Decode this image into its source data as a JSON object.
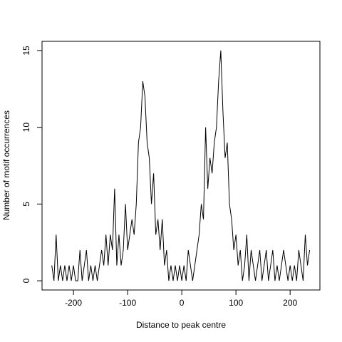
{
  "chart_data": {
    "type": "line",
    "xlabel": "Distance to peak centre",
    "ylabel": "Number of motif occurrences",
    "x": [
      -240,
      -236,
      -232,
      -228,
      -224,
      -220,
      -216,
      -212,
      -208,
      -204,
      -200,
      -196,
      -192,
      -188,
      -184,
      -180,
      -176,
      -172,
      -168,
      -164,
      -160,
      -156,
      -152,
      -148,
      -144,
      -140,
      -136,
      -132,
      -128,
      -124,
      -120,
      -116,
      -112,
      -108,
      -104,
      -100,
      -96,
      -92,
      -88,
      -84,
      -80,
      -76,
      -72,
      -68,
      -64,
      -60,
      -56,
      -52,
      -48,
      -44,
      -40,
      -36,
      -32,
      -28,
      -24,
      -20,
      -16,
      -12,
      -8,
      -4,
      0,
      4,
      8,
      12,
      16,
      20,
      24,
      28,
      32,
      36,
      40,
      44,
      48,
      52,
      56,
      60,
      64,
      68,
      72,
      76,
      80,
      84,
      88,
      92,
      96,
      100,
      104,
      108,
      112,
      116,
      120,
      124,
      128,
      132,
      136,
      140,
      144,
      148,
      152,
      156,
      160,
      164,
      168,
      172,
      176,
      180,
      184,
      188,
      192,
      196,
      200,
      204,
      208,
      212,
      216,
      220,
      224,
      228,
      232,
      236
    ],
    "series": [
      {
        "color": "#000000",
        "values": [
          1,
          0,
          3,
          0,
          1,
          0,
          1,
          0,
          1,
          0,
          1,
          0,
          0,
          2,
          0,
          1,
          2,
          0,
          1,
          0,
          1,
          0,
          1,
          2,
          1,
          3,
          1,
          3,
          2,
          6,
          1,
          3,
          1,
          2,
          5,
          2,
          3,
          4,
          3,
          5,
          9,
          10,
          13,
          12,
          9,
          8,
          5,
          7,
          3,
          4,
          2,
          4,
          1,
          2,
          0,
          1,
          0,
          1,
          0,
          1,
          0,
          1,
          0,
          2,
          1,
          0,
          1,
          2,
          3,
          5,
          4,
          10,
          6,
          8,
          7,
          9,
          10,
          13,
          15,
          11,
          8,
          9,
          5,
          4,
          2,
          3,
          1,
          2,
          0,
          1,
          3,
          0,
          2,
          1,
          0,
          1,
          2,
          0,
          1,
          2,
          0,
          1,
          2,
          0,
          1,
          0,
          1,
          2,
          1,
          0,
          1,
          0,
          1,
          0,
          2,
          1,
          0,
          3,
          1,
          2
        ]
      }
    ],
    "xlim": [
      -258,
      255
    ],
    "ylim": [
      -0.6,
      15.6
    ],
    "xticks": [
      -200,
      -100,
      0,
      100,
      200
    ],
    "yticks": [
      0,
      5,
      10,
      15
    ]
  }
}
